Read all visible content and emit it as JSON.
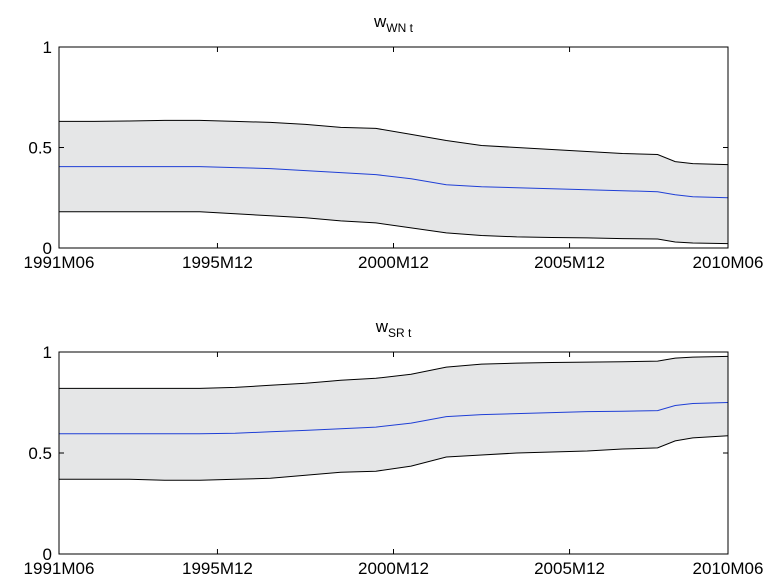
{
  "colors": {
    "band": "#e5e6e7",
    "bounds": "#000000",
    "median": "#1f3fd6",
    "frame": "#000000"
  },
  "chart_data": [
    {
      "type": "area",
      "title": {
        "main": "w",
        "sub": "WN t"
      },
      "xlabel": "",
      "ylabel": "",
      "x_ticks": [
        "1991M06",
        "1995M12",
        "2000M12",
        "2005M12",
        "2010M06"
      ],
      "x_tick_positions": [
        0,
        4.5,
        9.5,
        14.5,
        19
      ],
      "xlim": [
        0,
        19
      ],
      "y_ticks": [
        "0",
        "0.5",
        "1"
      ],
      "y_tick_values": [
        0,
        0.5,
        1
      ],
      "ylim": [
        0,
        1
      ],
      "grid": false,
      "x": [
        0,
        1,
        2,
        3,
        4,
        5,
        6,
        7,
        8,
        9,
        10,
        11,
        12,
        13,
        14,
        15,
        16,
        17,
        17.5,
        18,
        19
      ],
      "series": [
        {
          "values": [
            0.63,
            0.63,
            0.632,
            0.635,
            0.635,
            0.63,
            0.625,
            0.615,
            0.6,
            0.595,
            0.565,
            0.535,
            0.51,
            0.5,
            0.49,
            0.48,
            0.47,
            0.465,
            0.43,
            0.42,
            0.415
          ]
        },
        {
          "values": [
            0.405,
            0.405,
            0.405,
            0.405,
            0.405,
            0.4,
            0.395,
            0.385,
            0.375,
            0.365,
            0.345,
            0.315,
            0.305,
            0.3,
            0.295,
            0.29,
            0.285,
            0.28,
            0.265,
            0.255,
            0.25
          ]
        },
        {
          "values": [
            0.18,
            0.18,
            0.18,
            0.18,
            0.18,
            0.17,
            0.16,
            0.15,
            0.135,
            0.125,
            0.1,
            0.075,
            0.062,
            0.055,
            0.052,
            0.05,
            0.047,
            0.045,
            0.03,
            0.025,
            0.022
          ]
        }
      ]
    },
    {
      "type": "area",
      "title": {
        "main": "w",
        "sub": "SR t"
      },
      "xlabel": "",
      "ylabel": "",
      "x_ticks": [
        "1991M06",
        "1995M12",
        "2000M12",
        "2005M12",
        "2010M06"
      ],
      "x_tick_positions": [
        0,
        4.5,
        9.5,
        14.5,
        19
      ],
      "xlim": [
        0,
        19
      ],
      "y_ticks": [
        "0",
        "0.5",
        "1"
      ],
      "y_tick_values": [
        0,
        0.5,
        1
      ],
      "ylim": [
        0,
        1
      ],
      "grid": false,
      "x": [
        0,
        1,
        2,
        3,
        4,
        5,
        6,
        7,
        8,
        9,
        10,
        11,
        12,
        13,
        14,
        15,
        16,
        17,
        17.5,
        18,
        19
      ],
      "series": [
        {
          "values": [
            0.82,
            0.82,
            0.82,
            0.82,
            0.82,
            0.825,
            0.835,
            0.845,
            0.86,
            0.87,
            0.89,
            0.925,
            0.94,
            0.945,
            0.948,
            0.95,
            0.952,
            0.955,
            0.97,
            0.975,
            0.978
          ]
        },
        {
          "values": [
            0.595,
            0.595,
            0.595,
            0.595,
            0.595,
            0.598,
            0.605,
            0.612,
            0.62,
            0.628,
            0.648,
            0.68,
            0.69,
            0.695,
            0.7,
            0.705,
            0.707,
            0.71,
            0.735,
            0.745,
            0.75
          ]
        },
        {
          "values": [
            0.37,
            0.37,
            0.37,
            0.365,
            0.365,
            0.37,
            0.375,
            0.39,
            0.405,
            0.41,
            0.435,
            0.48,
            0.49,
            0.5,
            0.505,
            0.51,
            0.52,
            0.525,
            0.56,
            0.575,
            0.585
          ]
        }
      ]
    }
  ]
}
